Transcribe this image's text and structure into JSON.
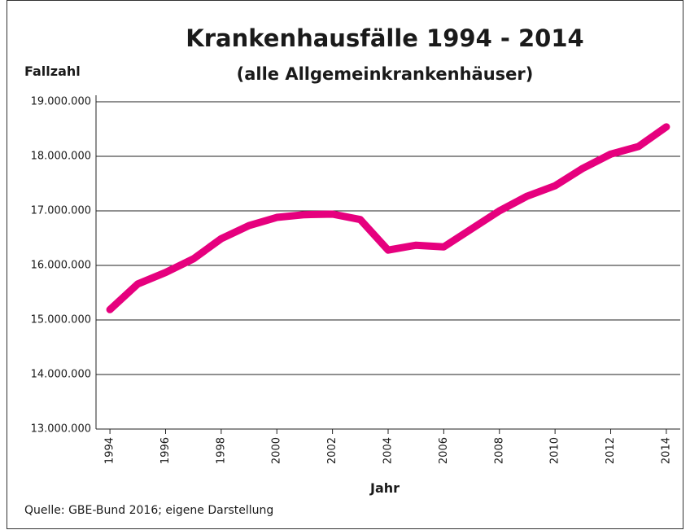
{
  "chart_data": {
    "type": "line",
    "title": "Krankenhausfälle 1994 - 2014",
    "subtitle": "(alle Allgemeinkrankenhäuser)",
    "y_label": "Fallzahl",
    "x_label": "Jahr",
    "source": "Quelle: GBE-Bund 2016; eigene Darstellung",
    "x": [
      1994,
      1995,
      1996,
      1997,
      1998,
      1999,
      2000,
      2001,
      2002,
      2003,
      2004,
      2005,
      2006,
      2007,
      2008,
      2009,
      2010,
      2011,
      2012,
      2013,
      2014
    ],
    "series": [
      {
        "name": "Krankenhausfälle",
        "color": "#e6007e",
        "values": [
          15190000,
          15660000,
          15870000,
          16120000,
          16490000,
          16730000,
          16880000,
          16930000,
          16940000,
          16840000,
          16280000,
          16370000,
          16340000,
          16670000,
          17000000,
          17270000,
          17460000,
          17780000,
          18040000,
          18180000,
          18540000
        ]
      }
    ],
    "xlim": [
      1993.5,
      2014.5
    ],
    "xticks": [
      1994,
      1996,
      1998,
      2000,
      2002,
      2004,
      2006,
      2008,
      2010,
      2012,
      2014
    ],
    "ylim": [
      13000000,
      19000000
    ],
    "yticks": [
      {
        "value": 13000000,
        "label": "13.000.000"
      },
      {
        "value": 14000000,
        "label": "14.000.000"
      },
      {
        "value": 15000000,
        "label": "15.000.000"
      },
      {
        "value": 16000000,
        "label": "16.000.000"
      },
      {
        "value": 17000000,
        "label": "17.000.000"
      },
      {
        "value": 18000000,
        "label": "18.000.000"
      },
      {
        "value": 19000000,
        "label": "19.000.000"
      }
    ],
    "grid": true
  }
}
